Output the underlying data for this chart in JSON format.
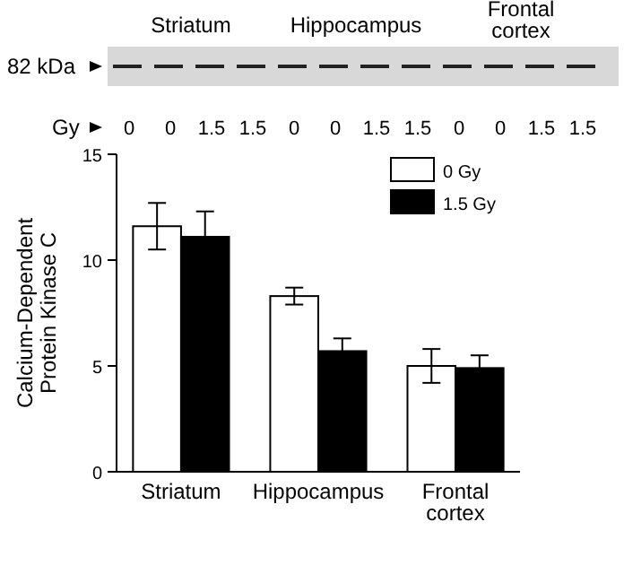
{
  "chart_data": {
    "type": "bar",
    "ylabel": "Calcium-Dependent Protein Kinase C",
    "categories": [
      "Striatum",
      "Hippocampus",
      "Frontal cortex"
    ],
    "series": [
      {
        "name": "0 Gy",
        "color": "#ffffff",
        "values": [
          11.6,
          8.3,
          5.0
        ],
        "errors": [
          1.1,
          0.4,
          0.8
        ]
      },
      {
        "name": "1.5 Gy",
        "color": "#000000",
        "values": [
          11.1,
          5.7,
          4.9
        ],
        "errors": [
          1.2,
          0.6,
          0.6
        ]
      }
    ],
    "ylim": [
      0,
      15
    ],
    "yticks": [
      0,
      5,
      10,
      15
    ],
    "grid": false,
    "legend": "top right",
    "annotations": [
      "Striatum",
      "Hippocampus",
      "Frontal cortex",
      "82 kDa",
      "Gy",
      "0",
      "0",
      "1.5",
      "1.5",
      "0",
      "0",
      "1.5",
      "1.5",
      "0",
      "0",
      "1.5",
      "1.5"
    ]
  }
}
